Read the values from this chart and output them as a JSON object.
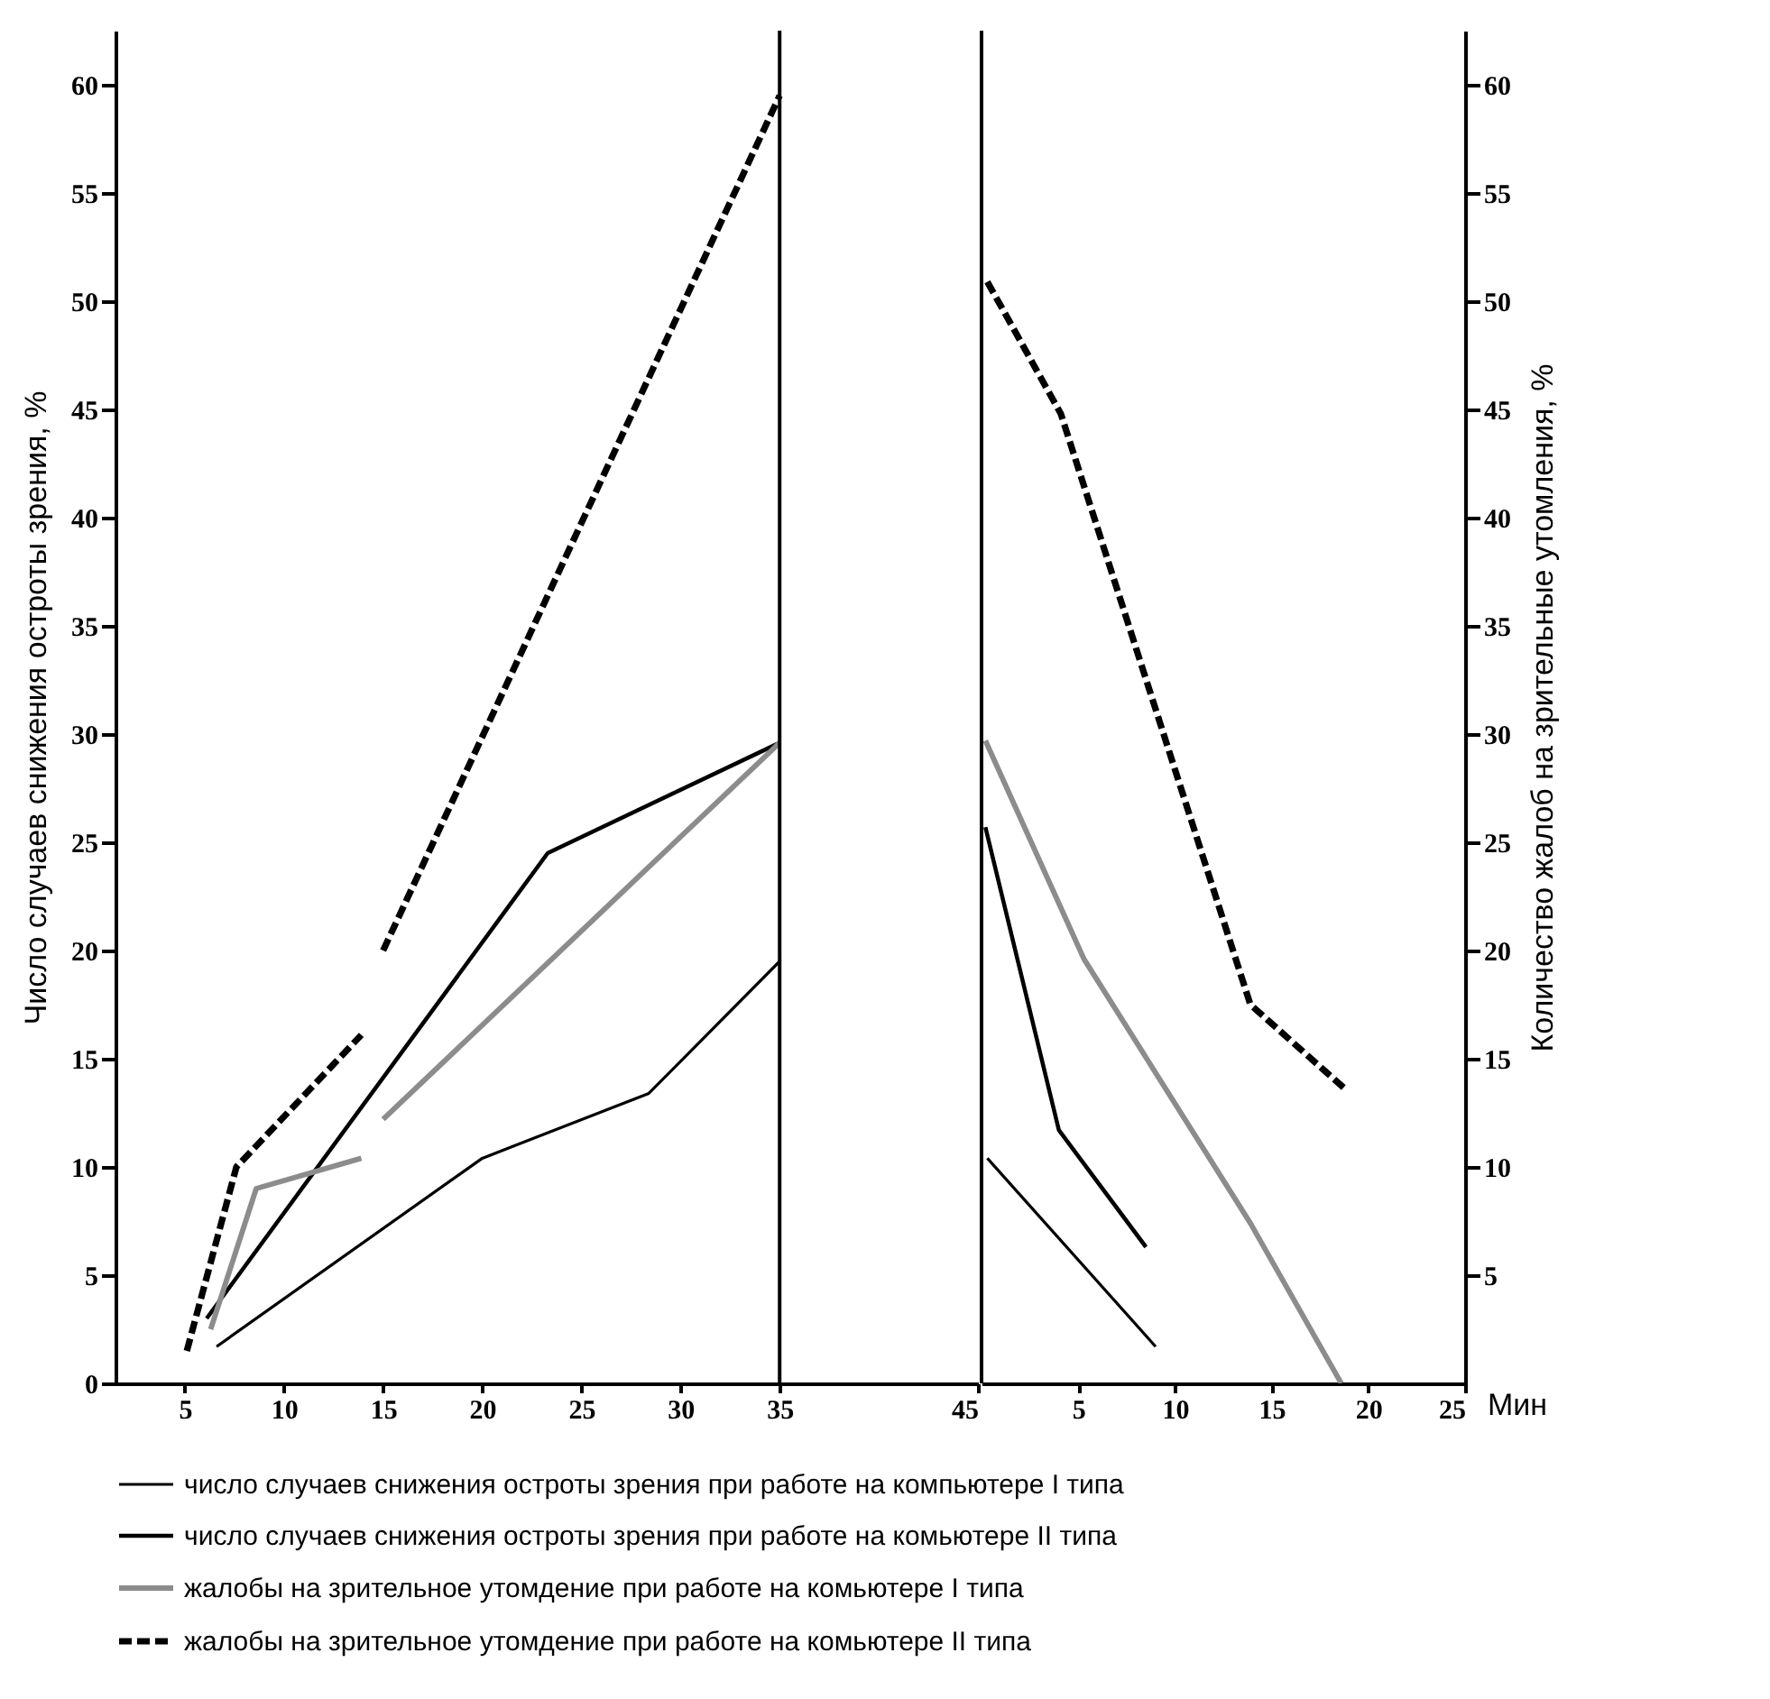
{
  "chart_data": [
    {
      "type": "line",
      "ylabel": "Число случаев снижения остроты зрения, %",
      "xlim": [
        1.5,
        45
      ],
      "xticks": [
        5,
        10,
        15,
        20,
        25,
        30,
        35,
        45
      ],
      "ylim": [
        0,
        62.5
      ],
      "yticks": [
        0,
        5,
        10,
        15,
        20,
        25,
        30,
        35,
        40,
        45,
        50,
        55,
        60
      ],
      "legend": "bottom",
      "series": [
        {
          "name": "число случаев снижения остроты зрения при работе на компьютере I типа",
          "color": "#000000",
          "line_style": "solid",
          "x": [
            6.6,
            20,
            28.4,
            35
          ],
          "values": [
            1.7,
            10.4,
            13.4,
            19.5
          ]
        },
        {
          "name": "число  случаев снижения остроты зрения при работе на комьютере II типа",
          "color": "#000000",
          "line_style": "solid",
          "x": [
            6.1,
            23.3,
            35
          ],
          "values": [
            3.0,
            24.5,
            29.6
          ]
        },
        {
          "name": "жалобы на зрительное утомдение при работе на комьютере I типа",
          "color": "#8c8c8c",
          "line_style": "solid",
          "x": [
            6.3,
            8.6,
            13.9,
            14.5,
            15,
            35
          ],
          "values": [
            2.5,
            9.0,
            10.4,
            null,
            12.2,
            29.6
          ]
        },
        {
          "name": "жалобы на зрительное утомдение при работе на комьютере II типа",
          "color": "#000000",
          "line_style": "dashed",
          "x": [
            5.1,
            7.6,
            13.9,
            14.5,
            15,
            35
          ],
          "values": [
            1.5,
            10.0,
            16.1,
            null,
            20.0,
            59.5
          ]
        }
      ]
    },
    {
      "type": "line",
      "xlabel": "Мин",
      "xlim": [
        0,
        25
      ],
      "xticks": [
        5,
        10,
        15,
        20,
        25
      ],
      "y2label": "Количество жалоб на зрительные утомления, %",
      "y2lim": [
        0,
        62.5
      ],
      "y2ticks": [
        5,
        10,
        15,
        20,
        25,
        30,
        35,
        40,
        45,
        50,
        55,
        60
      ],
      "series": [
        {
          "color": "#000000",
          "line_style": "solid",
          "axis": "y2",
          "x": [
            0.3,
            9.0
          ],
          "values": [
            10.4,
            1.7
          ]
        },
        {
          "color": "#000000",
          "line_style": "solid",
          "axis": "y2",
          "x": [
            0.2,
            4.0,
            8.5
          ],
          "values": [
            25.7,
            11.7,
            6.3
          ]
        },
        {
          "color": "#8c8c8c",
          "line_style": "solid",
          "axis": "y2",
          "x": [
            0.2,
            5.3,
            13.9,
            18.6
          ],
          "values": [
            29.7,
            19.6,
            7.4,
            0
          ]
        },
        {
          "color": "#000000",
          "line_style": "dashed",
          "axis": "y2",
          "x": [
            0.3,
            4.1,
            13.9,
            18.8
          ],
          "values": [
            50.9,
            44.8,
            17.5,
            13.6
          ]
        }
      ]
    }
  ]
}
